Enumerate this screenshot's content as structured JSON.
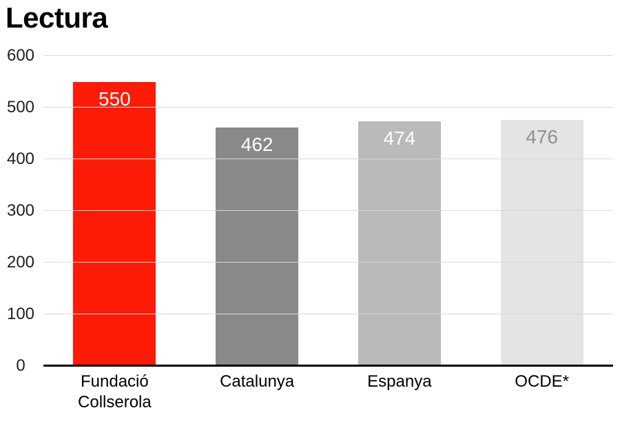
{
  "page": {
    "background_color": "#ffffff"
  },
  "chart_data": {
    "type": "bar",
    "title": "Lectura",
    "categories": [
      "Fundació Collserola",
      "Catalunya",
      "Espanya",
      "OCDE*"
    ],
    "values": [
      550,
      462,
      474,
      476
    ],
    "bar_colors": [
      "#fb1b07",
      "#898989",
      "#bababa",
      "#e4e4e4"
    ],
    "value_label_colors": [
      "#ffffff",
      "#ffffff",
      "#ffffff",
      "#8f8f8f"
    ],
    "xlabel": "",
    "ylabel": "",
    "ylim": [
      0,
      600
    ],
    "yticks": [
      0,
      100,
      200,
      300,
      400,
      500,
      600
    ],
    "grid": true,
    "gridline_color": "#d8d8d8",
    "axis_line_color": "#000000",
    "legend_position": "none"
  }
}
